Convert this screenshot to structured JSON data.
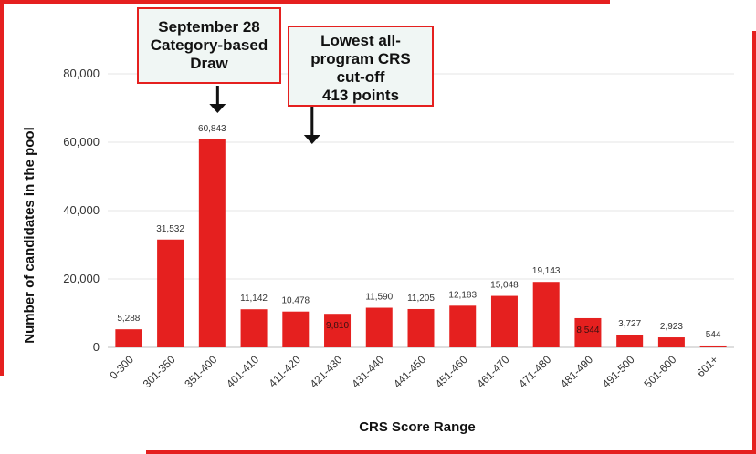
{
  "chart_data": {
    "type": "bar",
    "xlabel": "CRS Score Range",
    "ylabel": "Number of candidates in the pool",
    "ylim": [
      0,
      80000
    ],
    "yticks": [
      "0",
      "20,000",
      "40,000",
      "60,000",
      "80,000"
    ],
    "grid": true,
    "legend": "none",
    "categories": [
      "0-300",
      "301-350",
      "351-400",
      "401-410",
      "411-420",
      "421-430",
      "431-440",
      "441-450",
      "451-460",
      "461-470",
      "471-480",
      "481-490",
      "491-500",
      "501-600",
      "601+"
    ],
    "values": [
      5288,
      31532,
      60843,
      11142,
      10478,
      9810,
      11590,
      11205,
      12183,
      15048,
      19143,
      8544,
      3727,
      2923,
      544
    ],
    "value_labels": [
      "5,288",
      "31,532",
      "60,843",
      "11,142",
      "10,478",
      "9,810",
      "11,590",
      "11,205",
      "12,183",
      "15,048",
      "19,143",
      "8,544",
      "3,727",
      "2,923",
      "544"
    ],
    "colors": {
      "bar": "#e5201f",
      "grid": "#e4e4e4",
      "text": "#333333",
      "frame": "#e5201f"
    },
    "annotations": [
      {
        "lines": [
          "September 28",
          "Category-based",
          "Draw"
        ],
        "points_to_category": "351-400"
      },
      {
        "lines": [
          "Lowest all-",
          "program CRS",
          "cut-off",
          "413 points"
        ],
        "points_to_category": "411-420"
      }
    ]
  }
}
